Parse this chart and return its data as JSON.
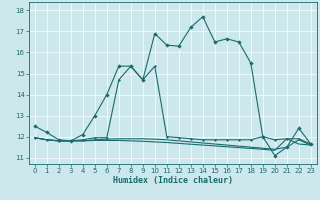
{
  "xlabel": "Humidex (Indice chaleur)",
  "bg_color": "#cde8ec",
  "line_color": "#1a6b6b",
  "grid_color": "#b0d8dc",
  "xlim": [
    -0.5,
    23.5
  ],
  "ylim": [
    10.7,
    18.4
  ],
  "yticks": [
    11,
    12,
    13,
    14,
    15,
    16,
    17,
    18
  ],
  "xticks": [
    0,
    1,
    2,
    3,
    4,
    5,
    6,
    7,
    8,
    9,
    10,
    11,
    12,
    13,
    14,
    15,
    16,
    17,
    18,
    19,
    20,
    21,
    22,
    23
  ],
  "line1_x": [
    0,
    1,
    2,
    3,
    4,
    5,
    6,
    7,
    8,
    9,
    10,
    11,
    12,
    13,
    14,
    15,
    16,
    17,
    18,
    19,
    20,
    21,
    22,
    23
  ],
  "line1_y": [
    12.5,
    12.2,
    11.85,
    11.8,
    12.1,
    13.0,
    14.0,
    15.35,
    15.35,
    14.7,
    16.9,
    16.35,
    16.3,
    17.2,
    17.7,
    16.5,
    16.65,
    16.5,
    15.5,
    12.0,
    11.1,
    11.5,
    12.4,
    11.65
  ],
  "line2_x": [
    0,
    1,
    2,
    3,
    4,
    5,
    6,
    7,
    8,
    9,
    10,
    11,
    12,
    13,
    14,
    15,
    16,
    17,
    18,
    19,
    20,
    21,
    22,
    23
  ],
  "line2_y": [
    11.95,
    11.85,
    11.8,
    11.8,
    11.85,
    11.95,
    11.95,
    14.7,
    15.35,
    14.7,
    15.35,
    12.0,
    11.95,
    11.9,
    11.85,
    11.85,
    11.85,
    11.85,
    11.85,
    12.0,
    11.85,
    11.9,
    11.9,
    11.65
  ],
  "line3_x": [
    0,
    1,
    2,
    3,
    4,
    5,
    6,
    7,
    8,
    9,
    10,
    11,
    12,
    13,
    14,
    15,
    16,
    17,
    18,
    19,
    20,
    21,
    22,
    23
  ],
  "line3_y": [
    11.95,
    11.85,
    11.8,
    11.8,
    11.8,
    11.85,
    11.88,
    11.9,
    11.9,
    11.9,
    11.88,
    11.85,
    11.8,
    11.75,
    11.7,
    11.65,
    11.6,
    11.55,
    11.5,
    11.45,
    11.4,
    11.5,
    11.85,
    11.6
  ],
  "line4_x": [
    0,
    1,
    2,
    3,
    4,
    5,
    6,
    7,
    8,
    9,
    10,
    11,
    12,
    13,
    14,
    15,
    16,
    17,
    18,
    19,
    20,
    21,
    22,
    23
  ],
  "line4_y": [
    11.95,
    11.85,
    11.8,
    11.8,
    11.8,
    11.82,
    11.82,
    11.82,
    11.8,
    11.78,
    11.75,
    11.72,
    11.68,
    11.64,
    11.6,
    11.56,
    11.52,
    11.48,
    11.44,
    11.4,
    11.35,
    11.9,
    11.65,
    11.6
  ]
}
